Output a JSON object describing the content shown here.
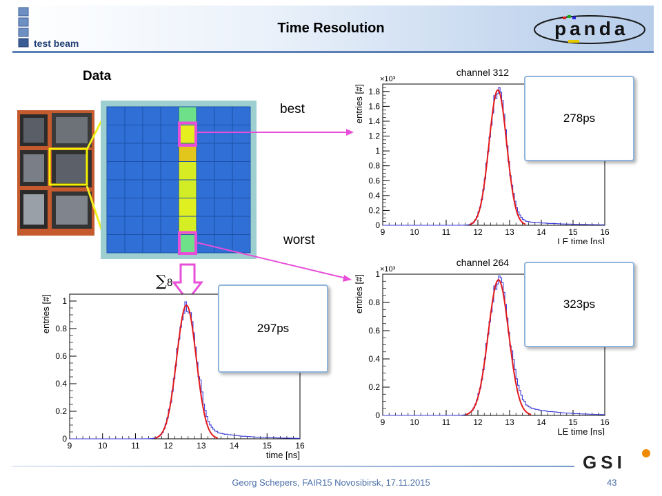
{
  "header": {
    "title": "Time Resolution",
    "subtitle": "test beam",
    "logo_text": "panda",
    "gsi_logo_text": "GSI"
  },
  "labels": {
    "data": "Data",
    "best": "best",
    "worst": "worst",
    "sum_symbol": "∑",
    "sum_index": "8"
  },
  "results": {
    "best_resolution": "278ps",
    "worst_resolution": "323ps",
    "sum_resolution": "297ps"
  },
  "footer": {
    "text": "Georg Schepers, FAIR15 Novosibirsk, 17.11.2015",
    "page": "43"
  },
  "colors": {
    "accent_blue": "#5a7fb5",
    "highlight_magenta": "#e84fd8",
    "arrow_yellow": "#f0f020",
    "fit_red": "#e31a1c",
    "hist_blue": "#3b3bd6"
  },
  "chart_data": [
    {
      "type": "bar",
      "title": "channel 312",
      "xlabel": "LE time [ns]",
      "ylabel": "entries [#]",
      "y_multiplier": "×10³",
      "xlim": [
        9,
        16
      ],
      "ylim": [
        0,
        1.9
      ],
      "x_ticks": [
        "9",
        "10",
        "11",
        "12",
        "13",
        "14",
        "15",
        "16"
      ],
      "y_ticks": [
        "0",
        "0.2",
        "0.4",
        "0.6",
        "0.8",
        "1",
        "1.2",
        "1.4",
        "1.6",
        "1.8"
      ],
      "histogram": {
        "mean": 12.63,
        "sigma": 0.278,
        "peak": 1.82,
        "tail_level": 0.06,
        "tail_decay": 1.2
      },
      "fit": {
        "mean": 12.63,
        "sigma": 0.278,
        "amplitude": 1.82
      }
    },
    {
      "type": "bar",
      "title": "channel 264",
      "xlabel": "LE time [ns]",
      "ylabel": "entries [#]",
      "y_multiplier": "×10³",
      "xlim": [
        9,
        16
      ],
      "ylim": [
        0,
        1.0
      ],
      "x_ticks": [
        "9",
        "10",
        "11",
        "12",
        "13",
        "14",
        "15",
        "16"
      ],
      "y_ticks": [
        "0",
        "0.2",
        "0.4",
        "0.6",
        "0.8",
        "1"
      ],
      "histogram": {
        "mean": 12.65,
        "sigma": 0.323,
        "peak": 0.96,
        "tail_level": 0.07,
        "tail_decay": 1.1
      },
      "fit": {
        "mean": 12.65,
        "sigma": 0.323,
        "amplitude": 0.96
      }
    },
    {
      "type": "bar",
      "title": "",
      "xlabel": "time [ns]",
      "ylabel": "entries [#]",
      "y_multiplier": "",
      "xlim": [
        9,
        16
      ],
      "ylim": [
        0,
        1.05
      ],
      "x_ticks": [
        "9",
        "10",
        "11",
        "12",
        "13",
        "14",
        "15",
        "16"
      ],
      "y_ticks": [
        "0",
        "0.2",
        "0.4",
        "0.6",
        "0.8",
        "1"
      ],
      "histogram": {
        "mean": 12.55,
        "sigma": 0.297,
        "peak": 0.97,
        "tail_level": 0.06,
        "tail_decay": 1.0
      },
      "fit": {
        "mean": 12.55,
        "sigma": 0.297,
        "amplitude": 0.97
      }
    }
  ]
}
